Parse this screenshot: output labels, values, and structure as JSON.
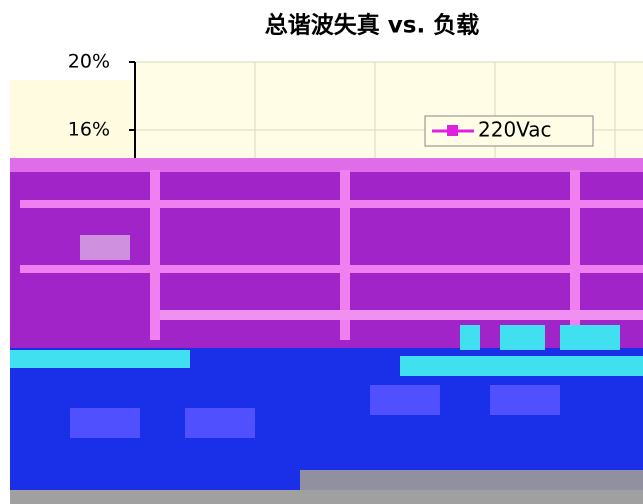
{
  "chart_data": {
    "type": "line",
    "title": "总谐波失真 vs. 负载",
    "ylim": [
      0,
      20
    ],
    "yticks": [
      {
        "value": 16,
        "label": "16%"
      },
      {
        "value": 20,
        "label": "20%"
      }
    ],
    "grid": true,
    "legend": "upper right",
    "series": [
      {
        "name": "220Vac",
        "color": "#e020e0"
      }
    ]
  }
}
